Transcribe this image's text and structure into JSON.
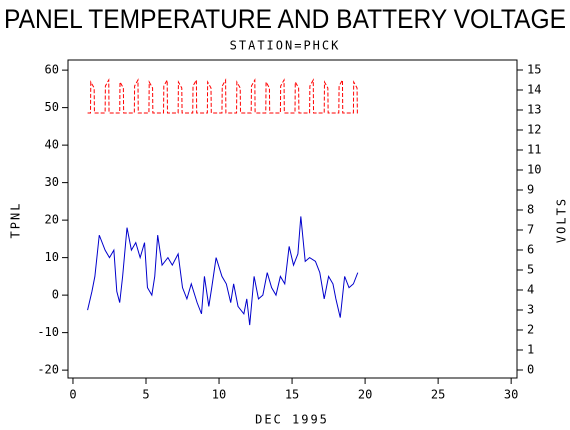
{
  "chart_data": {
    "type": "line",
    "title": "PANEL TEMPERATURE AND BATTERY VOLTAGE",
    "subtitle": "STATION=PHCK",
    "x_label": "DEC 1995",
    "y_label": "TPNL",
    "y2_label": "VOLTS",
    "xlim": [
      -0.34,
      30.4
    ],
    "xticks": [
      0,
      5,
      10,
      15,
      20,
      25,
      30
    ],
    "ylim": [
      -22.1,
      62.7
    ],
    "yticks": [
      -20,
      -10,
      0,
      10,
      20,
      30,
      40,
      50,
      60
    ],
    "y2lim": [
      -0.4,
      15.5
    ],
    "y2ticks": [
      0,
      1,
      2,
      3,
      4,
      5,
      6,
      7,
      8,
      9,
      10,
      11,
      12,
      13,
      14,
      15
    ],
    "series": [
      {
        "color": "#0000cc",
        "line_style": "solid",
        "x": [
          1.0,
          1.3,
          1.5,
          1.8,
          2.2,
          2.5,
          2.8,
          3.0,
          3.2,
          3.4,
          3.7,
          4.0,
          4.3,
          4.6,
          4.9,
          5.1,
          5.4,
          5.6,
          5.8,
          6.1,
          6.5,
          6.8,
          7.2,
          7.5,
          7.8,
          8.1,
          8.5,
          8.8,
          9.0,
          9.3,
          9.5,
          9.8,
          10.2,
          10.5,
          10.8,
          11.0,
          11.3,
          11.7,
          11.9,
          12.1,
          12.4,
          12.7,
          13.0,
          13.3,
          13.6,
          13.9,
          14.2,
          14.5,
          14.8,
          15.1,
          15.4,
          15.6,
          15.9,
          16.2,
          16.6,
          16.9,
          17.2,
          17.5,
          17.8,
          18.0,
          18.3,
          18.6,
          18.9,
          19.2,
          19.5
        ],
        "values": [
          -4,
          1,
          5,
          16,
          12,
          10,
          12,
          1,
          -2,
          5,
          18,
          12,
          14,
          10,
          14,
          2,
          0,
          5,
          16,
          8,
          10,
          8,
          11,
          2,
          -1,
          3,
          -2,
          -5,
          5,
          -3,
          2,
          10,
          5,
          3,
          -2,
          3,
          -3,
          -5,
          -1,
          -8,
          5,
          -1,
          0,
          6,
          2,
          0,
          5,
          3,
          13,
          8,
          11,
          21,
          9,
          10,
          9,
          6,
          -1,
          5,
          3,
          -1,
          -6,
          5,
          2,
          3,
          6
        ]
      },
      {
        "color": "#ff0000",
        "line_style": "dashed",
        "axis": "y2",
        "x": [
          1.0,
          1.2,
          1.22,
          1.45,
          1.47,
          2.2,
          2.22,
          2.45,
          2.47,
          3.2,
          3.22,
          3.45,
          3.47,
          4.2,
          4.22,
          4.45,
          4.47,
          5.2,
          5.22,
          5.45,
          5.47,
          6.2,
          6.22,
          6.45,
          6.47,
          7.2,
          7.22,
          7.45,
          7.47,
          8.2,
          8.22,
          8.45,
          8.47,
          9.2,
          9.22,
          9.45,
          9.47,
          10.2,
          10.22,
          10.45,
          10.47,
          11.2,
          11.22,
          11.45,
          11.47,
          12.2,
          12.22,
          12.45,
          12.47,
          13.2,
          13.22,
          13.45,
          13.47,
          14.2,
          14.22,
          14.45,
          14.47,
          15.2,
          15.22,
          15.45,
          15.47,
          16.2,
          16.22,
          16.45,
          16.47,
          17.2,
          17.22,
          17.45,
          17.47,
          18.2,
          18.22,
          18.45,
          18.47,
          19.2,
          19.22,
          19.45,
          19.47,
          19.5
        ],
        "values": [
          12.85,
          12.85,
          14.4,
          14.1,
          12.85,
          12.85,
          14.2,
          14.5,
          12.85,
          12.85,
          14.4,
          14.1,
          12.85,
          12.85,
          14.2,
          14.5,
          12.85,
          12.85,
          14.4,
          14.1,
          12.85,
          12.85,
          14.2,
          14.5,
          12.85,
          12.85,
          14.4,
          14.1,
          12.85,
          12.85,
          14.2,
          14.5,
          12.85,
          12.85,
          14.4,
          14.1,
          12.85,
          12.85,
          14.2,
          14.5,
          12.85,
          12.85,
          14.4,
          14.1,
          12.85,
          12.85,
          14.2,
          14.5,
          12.85,
          12.85,
          14.4,
          14.1,
          12.85,
          12.85,
          14.2,
          14.5,
          12.85,
          12.85,
          14.4,
          14.1,
          12.85,
          12.85,
          14.2,
          14.5,
          12.85,
          12.85,
          14.4,
          14.1,
          12.85,
          12.85,
          14.2,
          14.5,
          12.85,
          12.85,
          14.4,
          14.1,
          12.85,
          12.85
        ]
      }
    ]
  }
}
